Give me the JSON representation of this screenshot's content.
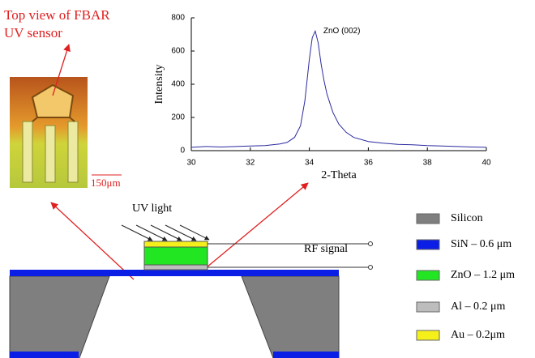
{
  "chart_data": {
    "type": "line",
    "xlabel": "2-Theta",
    "ylabel": "Intensity",
    "annotation": "ZnO (002)",
    "x": [
      30,
      30.5,
      31,
      31.5,
      32,
      32.5,
      33,
      33.25,
      33.5,
      33.7,
      33.85,
      34,
      34.1,
      34.2,
      34.3,
      34.4,
      34.5,
      34.6,
      34.8,
      35,
      35.25,
      35.5,
      36,
      36.5,
      37,
      37.5,
      38,
      38.5,
      39,
      39.5,
      40
    ],
    "values": [
      20,
      25,
      22,
      25,
      28,
      30,
      40,
      50,
      80,
      150,
      300,
      550,
      680,
      720,
      650,
      520,
      420,
      340,
      230,
      160,
      110,
      80,
      55,
      45,
      38,
      35,
      30,
      28,
      25,
      22,
      20
    ],
    "color": "#2a2aa0",
    "xlim": [
      30,
      40
    ],
    "xticks": [
      30,
      32,
      34,
      36,
      38,
      40
    ],
    "ylim": [
      0,
      800
    ],
    "yticks": [
      0,
      200,
      400,
      600,
      800
    ]
  },
  "figure": {
    "title_lines": [
      "Top view of FBAR",
      "UV sensor"
    ],
    "scale_bar": "150μm",
    "uv_label": "UV light",
    "rf_label": "RF signal",
    "legend": [
      {
        "label": "Silicon",
        "color": "#7f7f7f"
      },
      {
        "label": "SiN – 0.6 μm",
        "color": "#0a1ee6"
      },
      {
        "label": "ZnO – 1.2 μm",
        "color": "#22e622"
      },
      {
        "label": "Al – 0.2 μm",
        "color": "#bdbdbd"
      },
      {
        "label": "Au  – 0.2μm",
        "color": "#f5ef1a"
      }
    ]
  }
}
